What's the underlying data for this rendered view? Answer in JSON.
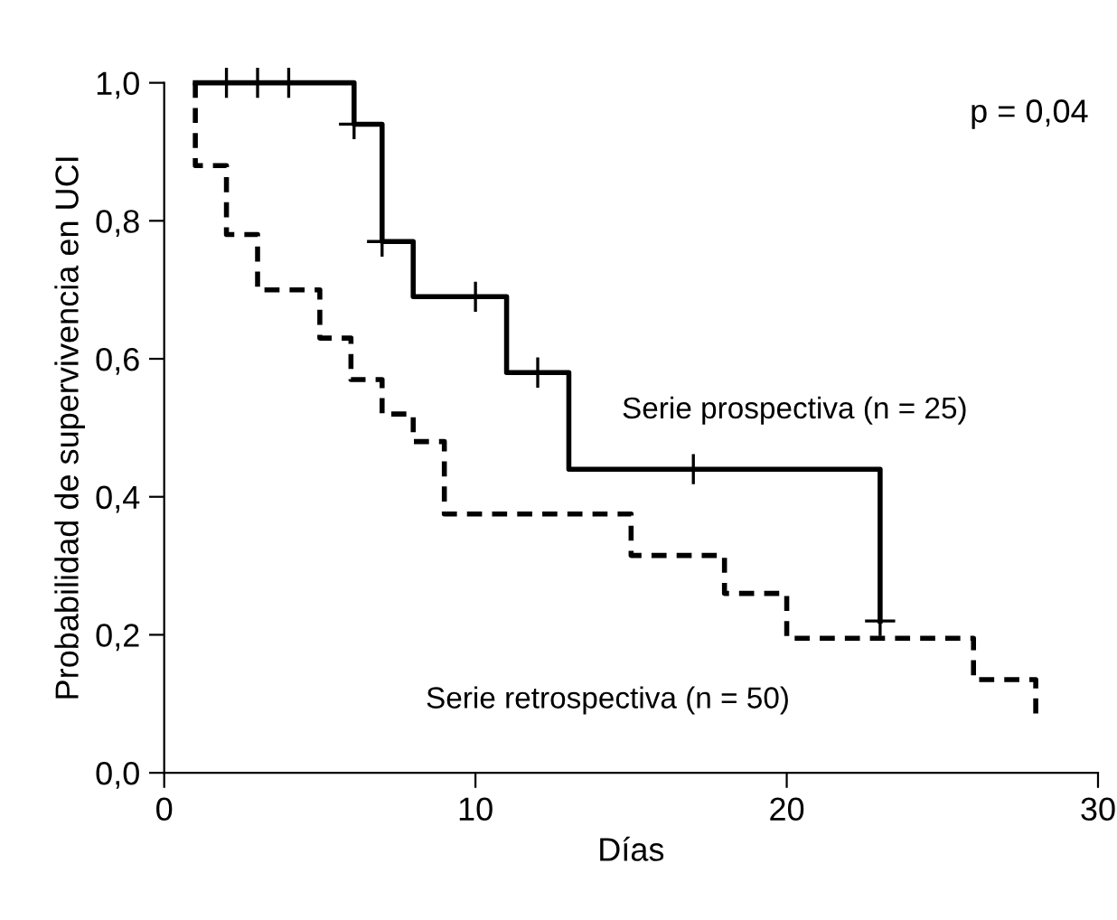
{
  "chart_data": {
    "type": "step",
    "xlabel": "Días",
    "ylabel": "Probabilidad de supervivencia en UCI",
    "xlim": [
      0,
      30
    ],
    "xticks": [
      0,
      10,
      20,
      30
    ],
    "ylim": [
      0,
      1.0
    ],
    "yticks": [
      {
        "value": 0,
        "label": "0,0"
      },
      {
        "value": 0.2,
        "label": "0,2"
      },
      {
        "value": 0.4,
        "label": "0,4"
      },
      {
        "value": 0.6,
        "label": "0,6"
      },
      {
        "value": 0.8,
        "label": "0,8"
      },
      {
        "value": 1.0,
        "label": "1,0"
      }
    ],
    "grid": false,
    "legend": false,
    "annotations": [
      "p = 0,04"
    ],
    "series": [
      {
        "name": "Serie prospectiva (n = 25)",
        "color": "#000000",
        "line_style": "solid",
        "x": [
          1,
          6.1,
          7,
          8,
          11,
          13,
          23
        ],
        "values": [
          1.0,
          0.94,
          0.77,
          0.69,
          0.58,
          0.44,
          0.22
        ]
      },
      {
        "name": "Serie retrospectiva (n = 50)",
        "color": "#000000",
        "line_style": "dashed",
        "x": [
          1,
          1,
          2,
          3,
          5,
          6,
          7,
          8,
          9,
          15,
          18,
          20,
          26,
          28
        ],
        "values": [
          1.0,
          0.88,
          0.78,
          0.7,
          0.63,
          0.57,
          0.52,
          0.48,
          0.375,
          0.315,
          0.26,
          0.195,
          0.135,
          0.08
        ]
      },
      {
        "type": "scatter",
        "marker": "cross",
        "color": "#000000",
        "x": [
          2,
          3,
          4,
          6.1,
          7,
          10,
          12,
          17,
          23
        ],
        "values": [
          1.0,
          1.0,
          1.0,
          0.94,
          0.77,
          0.69,
          0.58,
          0.44,
          0.22
        ]
      }
    ]
  }
}
